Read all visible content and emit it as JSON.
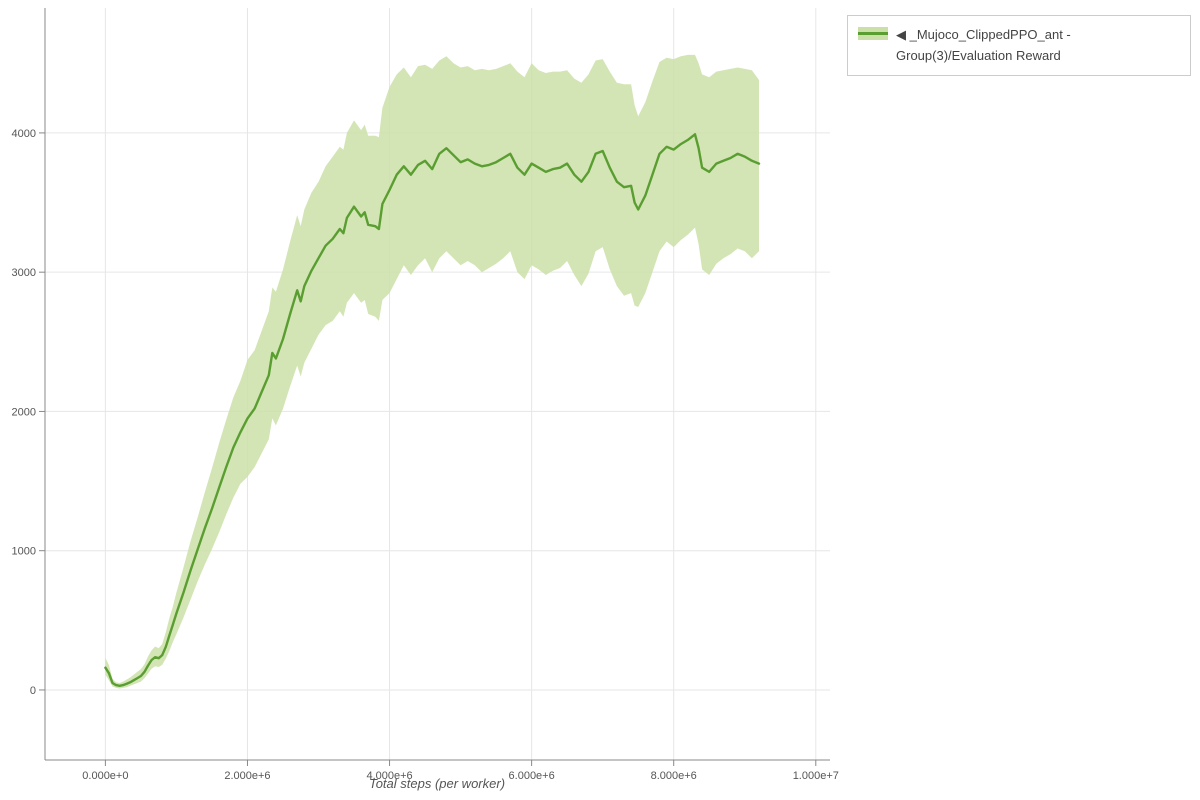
{
  "figure": {
    "background": "#ffffff"
  },
  "legend": {
    "items": [
      {
        "label": "◀ _Mujoco_ClippedPPO_ant - Group(3)/Evaluation Reward",
        "line_color": "#5a9e32",
        "band_color": "#cbe0a8"
      }
    ]
  },
  "chart_data": {
    "type": "line",
    "title": "",
    "xlabel": "Total steps (per worker)",
    "ylabel": "",
    "grid": true,
    "legend_position": "top-right",
    "x_unit_multiplier": 1000000,
    "x_domain": [
      -0.85,
      10.2
    ],
    "y_domain": [
      -503,
      4897
    ],
    "x_ticks": {
      "values": [
        0,
        2,
        4,
        6,
        8,
        10
      ],
      "labels": [
        "0.000e+0",
        "2.000e+6",
        "4.000e+6",
        "6.000e+6",
        "8.000e+6",
        "1.000e+7"
      ]
    },
    "y_ticks": {
      "values": [
        0,
        1000,
        2000,
        3000,
        4000
      ],
      "labels": [
        "0",
        "1000",
        "2000",
        "3000",
        "4000"
      ]
    },
    "grid_color": "#e6e6e6",
    "axis_color": "#888888",
    "series": [
      {
        "name": "_Mujoco_ClippedPPO_ant - Group(3)/Evaluation Reward",
        "line_color": "#5a9e32",
        "band_color": "#cbe0a8",
        "band_opacity": 0.85,
        "x_millions": [
          0.0,
          0.05,
          0.1,
          0.15,
          0.2,
          0.25,
          0.3,
          0.35,
          0.4,
          0.45,
          0.5,
          0.55,
          0.6,
          0.65,
          0.7,
          0.75,
          0.8,
          0.85,
          0.9,
          0.95,
          1.0,
          1.1,
          1.2,
          1.3,
          1.4,
          1.5,
          1.6,
          1.7,
          1.8,
          1.9,
          2.0,
          2.1,
          2.2,
          2.3,
          2.35,
          2.4,
          2.5,
          2.6,
          2.7,
          2.75,
          2.8,
          2.9,
          3.0,
          3.1,
          3.2,
          3.3,
          3.35,
          3.4,
          3.5,
          3.6,
          3.65,
          3.7,
          3.8,
          3.85,
          3.9,
          4.0,
          4.1,
          4.2,
          4.3,
          4.4,
          4.5,
          4.6,
          4.7,
          4.8,
          4.9,
          5.0,
          5.1,
          5.2,
          5.3,
          5.4,
          5.5,
          5.6,
          5.7,
          5.8,
          5.9,
          6.0,
          6.1,
          6.2,
          6.3,
          6.4,
          6.5,
          6.6,
          6.7,
          6.8,
          6.9,
          7.0,
          7.1,
          7.2,
          7.3,
          7.4,
          7.45,
          7.5,
          7.6,
          7.7,
          7.8,
          7.9,
          8.0,
          8.1,
          8.2,
          8.3,
          8.35,
          8.4,
          8.5,
          8.6,
          8.7,
          8.8,
          8.9,
          9.0,
          9.1,
          9.2
        ],
        "mean": [
          160,
          120,
          50,
          35,
          30,
          35,
          45,
          55,
          70,
          85,
          100,
          130,
          175,
          215,
          235,
          228,
          250,
          310,
          390,
          470,
          550,
          700,
          860,
          1010,
          1160,
          1300,
          1450,
          1600,
          1740,
          1850,
          1950,
          2020,
          2140,
          2260,
          2420,
          2380,
          2520,
          2700,
          2870,
          2790,
          2900,
          3010,
          3100,
          3190,
          3240,
          3310,
          3280,
          3390,
          3470,
          3400,
          3430,
          3340,
          3330,
          3310,
          3490,
          3590,
          3700,
          3760,
          3700,
          3770,
          3800,
          3740,
          3850,
          3890,
          3840,
          3790,
          3810,
          3780,
          3760,
          3770,
          3790,
          3820,
          3850,
          3750,
          3700,
          3780,
          3750,
          3720,
          3740,
          3750,
          3780,
          3700,
          3650,
          3720,
          3850,
          3870,
          3750,
          3650,
          3610,
          3620,
          3500,
          3450,
          3550,
          3700,
          3850,
          3900,
          3880,
          3920,
          3950,
          3990,
          3890,
          3750,
          3720,
          3780,
          3800,
          3820,
          3850,
          3830,
          3800,
          3780
        ],
        "lower": [
          110,
          70,
          25,
          15,
          10,
          15,
          20,
          30,
          40,
          50,
          60,
          85,
          118,
          152,
          170,
          165,
          180,
          225,
          280,
          345,
          400,
          520,
          650,
          780,
          900,
          1010,
          1130,
          1260,
          1380,
          1480,
          1530,
          1600,
          1700,
          1800,
          1950,
          1900,
          2020,
          2180,
          2330,
          2250,
          2350,
          2450,
          2550,
          2620,
          2650,
          2720,
          2680,
          2780,
          2850,
          2780,
          2800,
          2700,
          2680,
          2650,
          2800,
          2850,
          2950,
          3050,
          2980,
          3050,
          3100,
          3000,
          3100,
          3150,
          3100,
          3050,
          3080,
          3050,
          3000,
          3030,
          3060,
          3100,
          3150,
          3000,
          2950,
          3050,
          3020,
          2980,
          3010,
          3030,
          3080,
          2980,
          2900,
          2990,
          3150,
          3180,
          3020,
          2900,
          2830,
          2850,
          2760,
          2750,
          2850,
          3000,
          3150,
          3220,
          3180,
          3230,
          3270,
          3320,
          3200,
          3020,
          2980,
          3060,
          3100,
          3130,
          3170,
          3150,
          3100,
          3150
        ],
        "upper": [
          230,
          180,
          80,
          55,
          50,
          60,
          75,
          90,
          110,
          130,
          150,
          185,
          240,
          285,
          312,
          300,
          330,
          415,
          515,
          600,
          700,
          880,
          1070,
          1240,
          1420,
          1590,
          1770,
          1940,
          2100,
          2220,
          2370,
          2440,
          2580,
          2720,
          2890,
          2860,
          3020,
          3220,
          3410,
          3330,
          3450,
          3570,
          3650,
          3760,
          3830,
          3900,
          3880,
          4000,
          4090,
          4020,
          4060,
          3980,
          3980,
          3970,
          4180,
          4330,
          4420,
          4470,
          4400,
          4480,
          4490,
          4460,
          4520,
          4550,
          4500,
          4470,
          4480,
          4450,
          4460,
          4450,
          4460,
          4480,
          4500,
          4440,
          4400,
          4500,
          4450,
          4430,
          4440,
          4440,
          4450,
          4390,
          4360,
          4420,
          4520,
          4530,
          4440,
          4360,
          4350,
          4350,
          4200,
          4120,
          4220,
          4370,
          4510,
          4540,
          4530,
          4550,
          4560,
          4560,
          4500,
          4420,
          4400,
          4440,
          4450,
          4460,
          4470,
          4460,
          4450,
          4380
        ]
      }
    ]
  }
}
